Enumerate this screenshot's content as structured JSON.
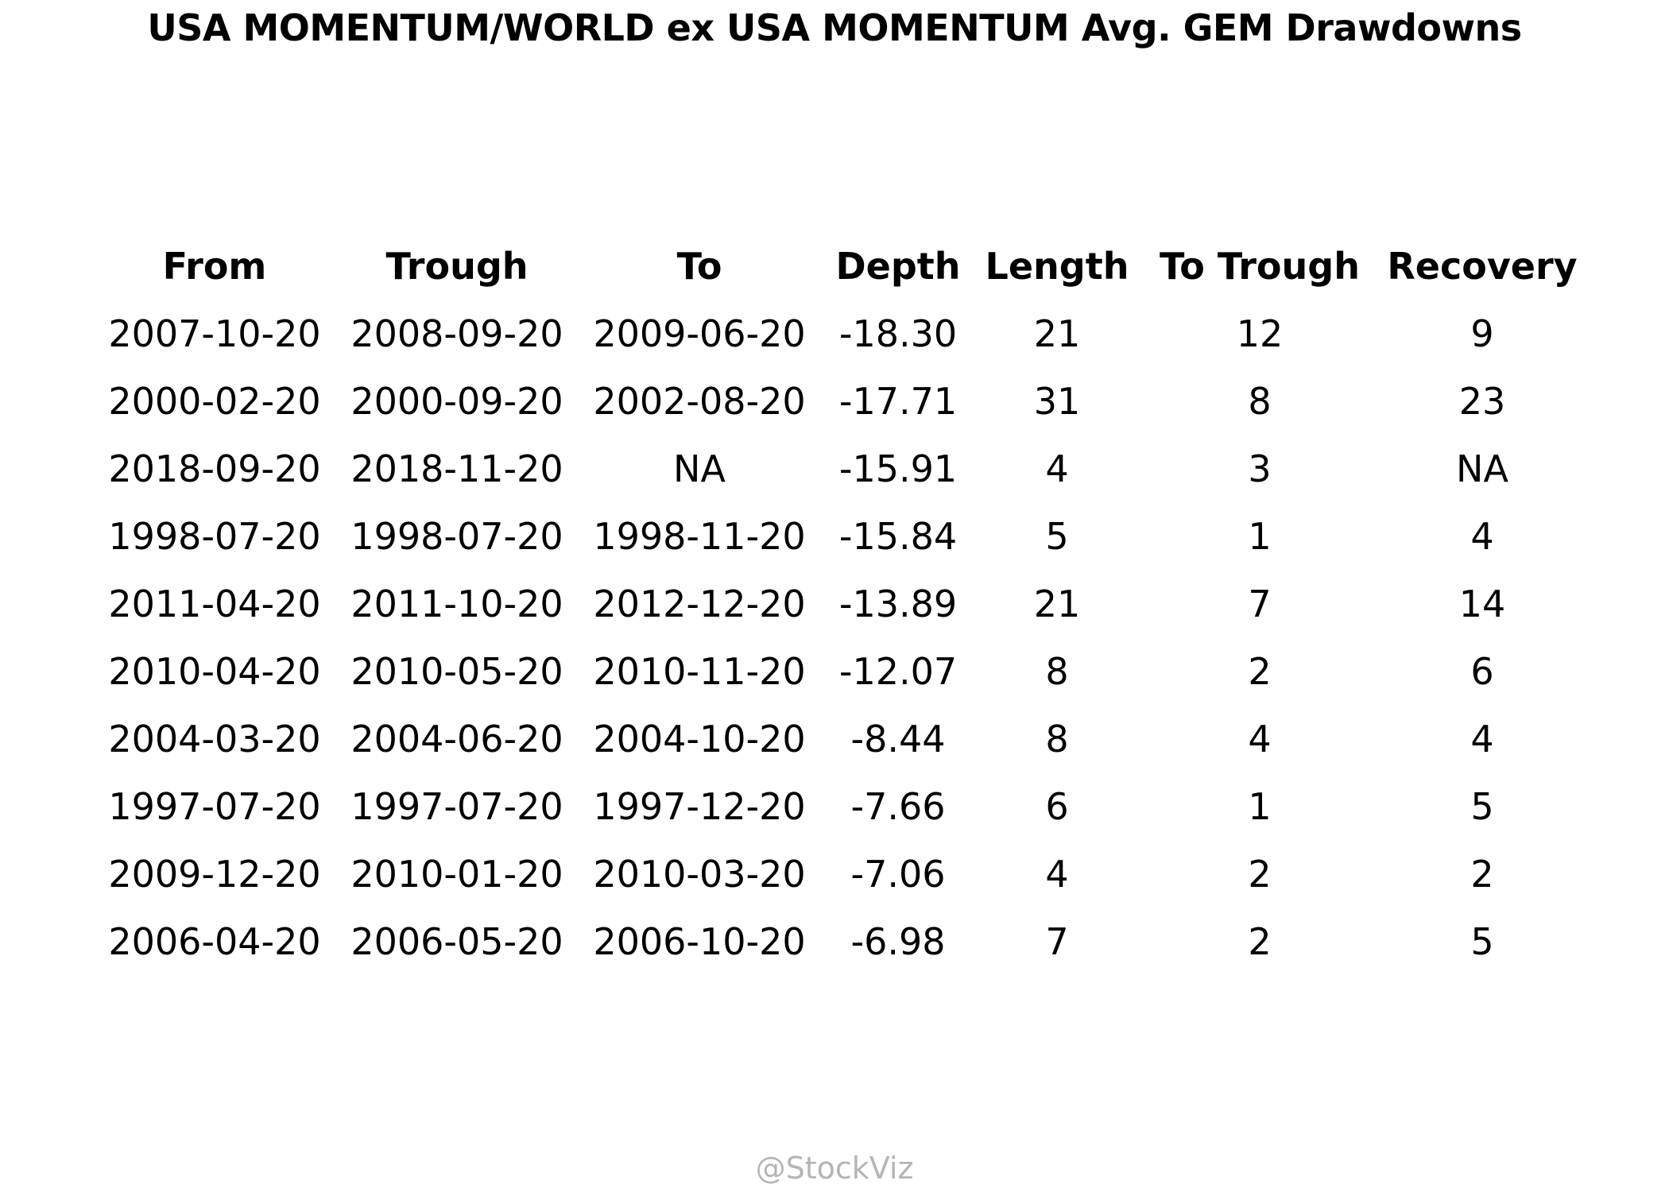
{
  "chart_data": {
    "type": "table",
    "title": "USA MOMENTUM/WORLD ex USA MOMENTUM Avg. GEM Drawdowns",
    "columns": [
      "From",
      "Trough",
      "To",
      "Depth",
      "Length",
      "To Trough",
      "Recovery"
    ],
    "rows": [
      [
        "2007-10-20",
        "2008-09-20",
        "2009-06-20",
        "-18.30",
        "21",
        "12",
        "9"
      ],
      [
        "2000-02-20",
        "2000-09-20",
        "2002-08-20",
        "-17.71",
        "31",
        "8",
        "23"
      ],
      [
        "2018-09-20",
        "2018-11-20",
        "NA",
        "-15.91",
        "4",
        "3",
        "NA"
      ],
      [
        "1998-07-20",
        "1998-07-20",
        "1998-11-20",
        "-15.84",
        "5",
        "1",
        "4"
      ],
      [
        "2011-04-20",
        "2011-10-20",
        "2012-12-20",
        "-13.89",
        "21",
        "7",
        "14"
      ],
      [
        "2010-04-20",
        "2010-05-20",
        "2010-11-20",
        "-12.07",
        "8",
        "2",
        "6"
      ],
      [
        "2004-03-20",
        "2004-06-20",
        "2004-10-20",
        "-8.44",
        "8",
        "4",
        "4"
      ],
      [
        "1997-07-20",
        "1997-07-20",
        "1997-12-20",
        "-7.66",
        "6",
        "1",
        "5"
      ],
      [
        "2009-12-20",
        "2010-01-20",
        "2010-03-20",
        "-7.06",
        "4",
        "2",
        "2"
      ],
      [
        "2006-04-20",
        "2006-05-20",
        "2006-10-20",
        "-6.98",
        "7",
        "2",
        "5"
      ]
    ]
  },
  "watermark": "@StockViz",
  "colors": {
    "text": "#000000",
    "watermark": "#b5b5b5",
    "background": "#ffffff"
  }
}
